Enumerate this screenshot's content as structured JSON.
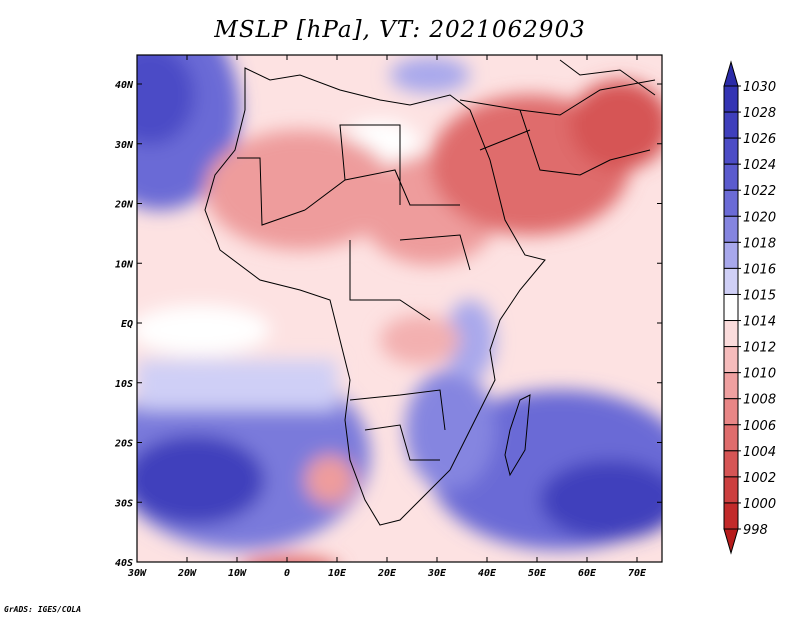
{
  "title": "MSLP [hPa], VT: 2021062903",
  "credit": "GrADS: IGES/COLA",
  "axes": {
    "lon_labels": [
      "30W",
      "20W",
      "10W",
      "0",
      "10E",
      "20E",
      "30E",
      "40E",
      "50E",
      "60E",
      "70E"
    ],
    "lat_labels": [
      "40N",
      "30N",
      "20N",
      "10N",
      "EQ",
      "10S",
      "20S",
      "30S",
      "40S"
    ]
  },
  "colorbar": {
    "levels": [
      "1030",
      "1028",
      "1026",
      "1024",
      "1022",
      "1020",
      "1018",
      "1016",
      "1015",
      "1014",
      "1012",
      "1010",
      "1008",
      "1006",
      "1004",
      "1002",
      "1000",
      "998"
    ],
    "colors": [
      "#2b2ba8",
      "#3434b3",
      "#3f3fbc",
      "#4c4cc6",
      "#5b5bce",
      "#6b6bd6",
      "#8585e0",
      "#a8a8ec",
      "#cfcff6",
      "#ffffff",
      "#fbdcdc",
      "#f6bcbc",
      "#efa0a0",
      "#e88686",
      "#df6c6c",
      "#d65555",
      "#cc3f3f",
      "#c22a2a",
      "#b71c1c"
    ]
  }
}
